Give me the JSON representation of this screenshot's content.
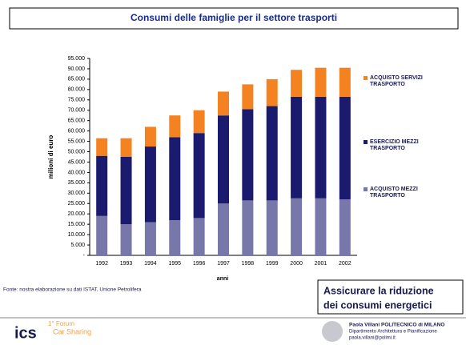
{
  "chart_data": {
    "type": "stacked_bar",
    "title": "Consumi delle famiglie per il settore trasporti",
    "y_label": "milioni di euro",
    "x_label": "anni",
    "source": "Fonte: nostra elaborazione su dati ISTAT, Unione Petrolifera",
    "categories": [
      "1992",
      "1993",
      "1994",
      "1995",
      "1996",
      "1997",
      "1998",
      "1999",
      "2000",
      "2001",
      "2002"
    ],
    "series": [
      {
        "name": "ACQUISTO MEZZI TRASPORTO",
        "color": "#7777aa",
        "values": [
          19000,
          15000,
          16000,
          17000,
          18000,
          25000,
          26500,
          26500,
          27500,
          27500,
          27000
        ]
      },
      {
        "name": "ESERCIZIO MEZZI TRASPORTO",
        "color": "#1a1a6e",
        "values": [
          29000,
          32500,
          36500,
          40000,
          41000,
          42500,
          44000,
          45500,
          49000,
          49000,
          49500
        ]
      },
      {
        "name": "ACQUISTO SERVIZI TRASPORTO",
        "color": "#f58220",
        "values": [
          8500,
          9000,
          9500,
          10500,
          11000,
          11500,
          12000,
          13000,
          13000,
          14000,
          14000
        ]
      }
    ],
    "ylim": [
      0,
      95000
    ],
    "yticks": [
      {
        "value": 0,
        "label": "-"
      },
      {
        "value": 5000,
        "label": "5.000"
      },
      {
        "value": 10000,
        "label": "10.000"
      },
      {
        "value": 15000,
        "label": "15.000"
      },
      {
        "value": 20000,
        "label": "20.000"
      },
      {
        "value": 25000,
        "label": "25.000"
      },
      {
        "value": 30000,
        "label": "30.000"
      },
      {
        "value": 35000,
        "label": "35.000"
      },
      {
        "value": 40000,
        "label": "40.000"
      },
      {
        "value": 45000,
        "label": "45.000"
      },
      {
        "value": 50000,
        "label": "50.000"
      },
      {
        "value": 55000,
        "label": "55.000"
      },
      {
        "value": 60000,
        "label": "60.000"
      },
      {
        "value": 65000,
        "label": "65.000"
      },
      {
        "value": 70000,
        "label": "70.000"
      },
      {
        "value": 75000,
        "label": "75.000"
      },
      {
        "value": 80000,
        "label": "80.000"
      },
      {
        "value": 85000,
        "label": "85.000"
      },
      {
        "value": 90000,
        "label": "90.000"
      },
      {
        "value": 95000,
        "label": "95.000"
      }
    ],
    "legend": "right",
    "grid": false
  },
  "slide": {
    "callout": [
      "Assicurare la riduzione",
      "dei consumi energetici"
    ],
    "logo": "ics",
    "forum": [
      "1° Forum",
      "Car Sharing"
    ],
    "author": "Paola Villani POLITECNICO di MILANO",
    "department": "Dipartimento Architettura e Pianificazione",
    "email": "paola.villani@polimi.it"
  }
}
